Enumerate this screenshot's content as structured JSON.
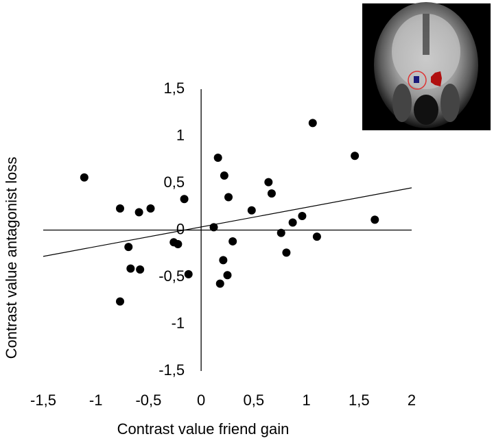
{
  "chart_data": {
    "type": "scatter",
    "x_label": "Contrast value friend gain",
    "y_label": "Contrast value antagonist loss",
    "xlim": [
      -1.5,
      2
    ],
    "ylim": [
      -1.5,
      1.5
    ],
    "xticks": [
      {
        "value": -1.5,
        "label": "-1,5"
      },
      -1,
      {
        "value": -0.5,
        "label": "-0,5"
      },
      0,
      {
        "value": 0.5,
        "label": "0,5"
      },
      1,
      {
        "value": 1.5,
        "label": "1,5"
      },
      2
    ],
    "yticks": [
      {
        "value": -1.5,
        "label": "-1,5"
      },
      -1,
      {
        "value": -0.5,
        "label": "-0,5"
      },
      0,
      {
        "value": 0.5,
        "label": "0,5"
      },
      1,
      {
        "value": 1.5,
        "label": "1,5"
      }
    ],
    "color": "#000000",
    "x": [
      -1.11,
      -0.77,
      -0.59,
      -0.48,
      -0.16,
      -0.69,
      -0.67,
      -0.58,
      -0.26,
      -0.22,
      -0.12,
      -0.77,
      0.16,
      0.22,
      0.26,
      0.12,
      0.3,
      0.21,
      0.25,
      0.18,
      0.48,
      0.64,
      0.67,
      0.87,
      0.96,
      0.76,
      0.81,
      1.1,
      1.06,
      1.46,
      1.65
    ],
    "y": [
      0.56,
      0.23,
      0.19,
      0.23,
      0.33,
      -0.18,
      -0.41,
      -0.42,
      -0.13,
      -0.15,
      -0.47,
      -0.76,
      0.77,
      0.58,
      0.35,
      0.03,
      -0.12,
      -0.32,
      -0.48,
      -0.57,
      0.21,
      0.51,
      0.39,
      0.08,
      0.15,
      -0.03,
      -0.24,
      -0.07,
      1.14,
      0.79,
      0.11
    ],
    "trend_line": {
      "x": [
        -1.5,
        2
      ],
      "y": [
        -0.28,
        0.45
      ]
    }
  }
}
